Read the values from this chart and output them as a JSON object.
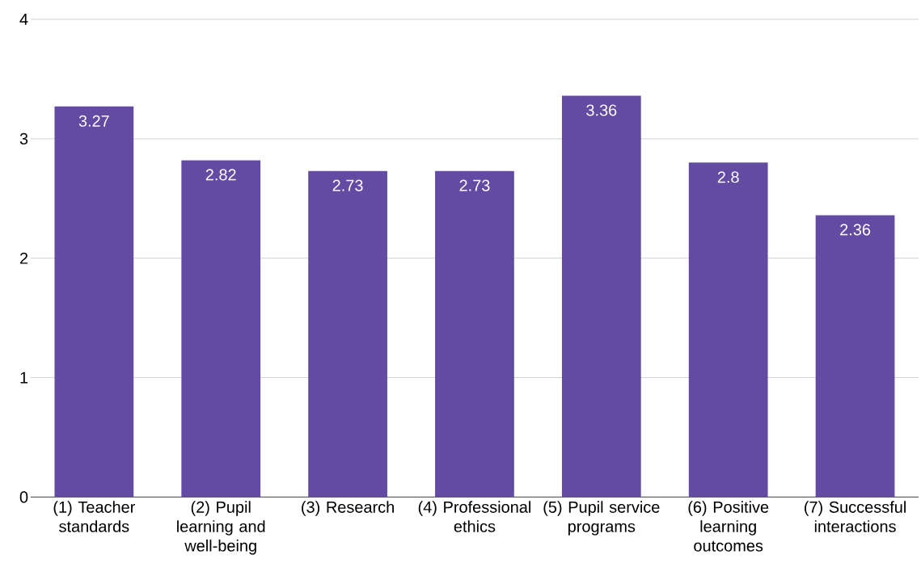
{
  "chart_data": {
    "type": "bar",
    "categories": [
      "(1) Teacher standards",
      "(2) Pupil learning and well-being",
      "(3) Research",
      "(4) Professional ethics",
      "(5) Pupil service programs",
      "(6) Positive learning outcomes",
      "(7) Successful interactions"
    ],
    "values": [
      3.27,
      2.82,
      2.73,
      2.73,
      3.36,
      2.8,
      2.36
    ],
    "color": "#634ba3",
    "ylim": [
      0,
      4
    ],
    "yticks": [
      0,
      1,
      2,
      3,
      4
    ],
    "grid": "y",
    "data_labels": true
  }
}
